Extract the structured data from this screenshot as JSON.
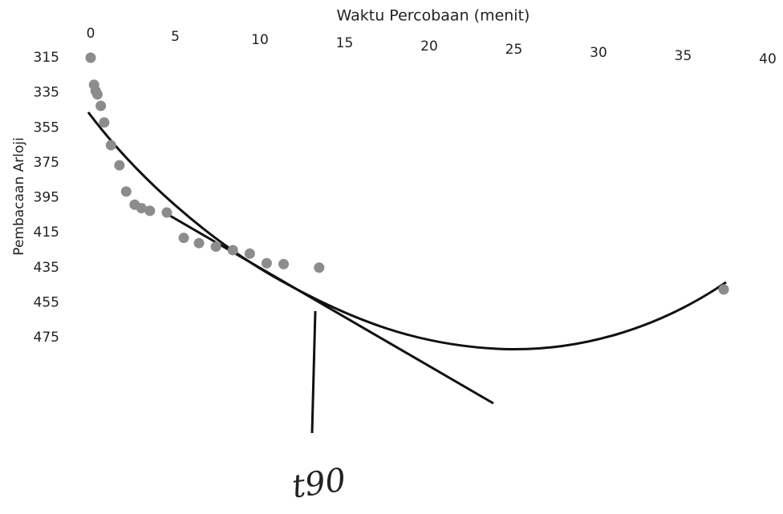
{
  "chart_data": {
    "type": "scatter",
    "title": "Waktu Percobaan (menit)",
    "y_label": "Pembacaan Arloji",
    "annotation": "t90",
    "x": [
      0,
      0.2,
      0.3,
      0.4,
      0.6,
      0.8,
      1.2,
      1.7,
      2.1,
      2.6,
      3.0,
      3.5,
      4.5,
      5.5,
      6.4,
      7.4,
      8.4,
      9.4,
      10.4,
      11.4,
      13.5,
      37.4
    ],
    "values": [
      315,
      330.5,
      334,
      336,
      342.5,
      352,
      365,
      376.5,
      391.5,
      399,
      401,
      402.5,
      403.5,
      418,
      421,
      423,
      425,
      427,
      432.5,
      433,
      435,
      447.5
    ],
    "color": "#8c8c8c",
    "xlim": [
      0,
      40
    ],
    "xticks": [
      0,
      5,
      10,
      15,
      20,
      25,
      30,
      35,
      40
    ],
    "ylim": [
      315,
      475
    ],
    "yticks": [
      315,
      335,
      355,
      375,
      395,
      415,
      435,
      455,
      475
    ],
    "y_reversed": true,
    "x_axis_position": "top",
    "grid": false
  }
}
